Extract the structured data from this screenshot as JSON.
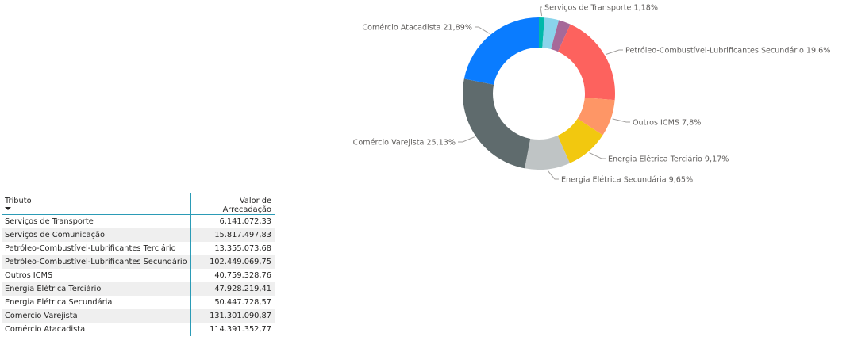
{
  "chart_data": {
    "type": "pie",
    "variant": "donut",
    "start_slice": "Serviços de Transporte",
    "slices": [
      {
        "name": "Serviços de Transporte",
        "label": "Serviços de Transporte 1,18%",
        "value": 1.18,
        "color": "#01B8AA"
      },
      {
        "name": "Serviços de Comunicação",
        "label": "",
        "value": 3.04,
        "color": "#8AD4EB"
      },
      {
        "name": "Petróleo-Combustível-Lubrificantes Terciário",
        "label": "",
        "value": 2.56,
        "color": "#A66999"
      },
      {
        "name": "Petróleo-Combustível-Lubrificantes Secundário",
        "label": "Petróleo-Combustível-Lubrificantes Secundário 19,6%",
        "value": 19.6,
        "color": "#FD625E"
      },
      {
        "name": "Outros ICMS",
        "label": "Outros ICMS 7,8%",
        "value": 7.8,
        "color": "#FE9666"
      },
      {
        "name": "Energia Elétrica Terciário",
        "label": "Energia Elétrica Terciário 9,17%",
        "value": 9.17,
        "color": "#F2C80F"
      },
      {
        "name": "Energia Elétrica Secundária",
        "label": "Energia Elétrica Secundária 9,65%",
        "value": 9.65,
        "color": "#BFC4C5"
      },
      {
        "name": "Comércio Varejista",
        "label": "Comércio Varejista 25,13%",
        "value": 25.13,
        "color": "#5F6B6D"
      },
      {
        "name": "Comércio Atacadista",
        "label": "Comércio Atacadista 21,89%",
        "value": 21.89,
        "color": "#0A7CFF"
      }
    ]
  },
  "table": {
    "headers": {
      "tributo": "Tributo",
      "valor": "Valor de Arrecadação"
    },
    "sort_icon": "sort-descending-icon",
    "rows": [
      {
        "tributo": "Serviços de Transporte",
        "valor": "6.141.072,33"
      },
      {
        "tributo": "Serviços de Comunicação",
        "valor": "15.817.497,83"
      },
      {
        "tributo": "Petróleo-Combustível-Lubrificantes Terciário",
        "valor": "13.355.073,68"
      },
      {
        "tributo": "Petróleo-Combustível-Lubrificantes Secundário",
        "valor": "102.449.069,75"
      },
      {
        "tributo": "Outros ICMS",
        "valor": "40.759.328,76"
      },
      {
        "tributo": "Energia Elétrica Terciário",
        "valor": "47.928.219,41"
      },
      {
        "tributo": "Energia Elétrica Secundária",
        "valor": "50.447.728,57"
      },
      {
        "tributo": "Comércio Varejista",
        "valor": "131.301.090,87"
      },
      {
        "tributo": "Comércio Atacadista",
        "valor": "114.391.352,77"
      }
    ]
  }
}
